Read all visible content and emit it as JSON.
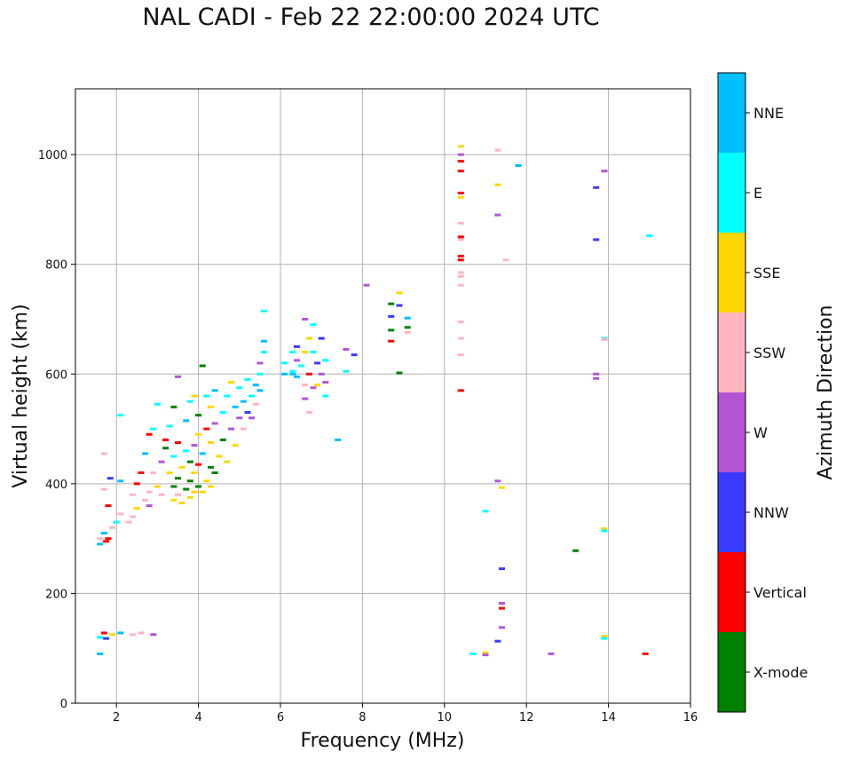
{
  "chart_data": {
    "type": "scatter",
    "title": "NAL CADI - Feb 22 22:00:00 2024 UTC",
    "xlabel": "Frequency (MHz)",
    "ylabel": "Virtual height (km)",
    "xlim": [
      1,
      16
    ],
    "ylim": [
      0,
      1120
    ],
    "xticks": [
      2,
      4,
      6,
      8,
      10,
      12,
      14,
      16
    ],
    "yticks": [
      0,
      200,
      400,
      600,
      800,
      1000
    ],
    "grid": true,
    "colorbar": {
      "label": "Azimuth Direction",
      "categories": [
        {
          "name": "X-mode",
          "color": "#008000"
        },
        {
          "name": "Vertical",
          "color": "#ff0000"
        },
        {
          "name": "NNW",
          "color": "#3a3aff"
        },
        {
          "name": "W",
          "color": "#b455d6"
        },
        {
          "name": "SSW",
          "color": "#ffb6c1"
        },
        {
          "name": "SSE",
          "color": "#ffd700"
        },
        {
          "name": "E",
          "color": "#00ffff"
        },
        {
          "name": "NNE",
          "color": "#00bfff"
        }
      ]
    },
    "points": [
      {
        "f": 1.6,
        "h": 90,
        "d": "NNE"
      },
      {
        "f": 1.6,
        "h": 120,
        "d": "E"
      },
      {
        "f": 1.7,
        "h": 128,
        "d": "Vertical"
      },
      {
        "f": 1.75,
        "h": 118,
        "d": "NNW"
      },
      {
        "f": 1.9,
        "h": 125,
        "d": "SSE"
      },
      {
        "f": 2.1,
        "h": 128,
        "d": "NNE"
      },
      {
        "f": 2.4,
        "h": 125,
        "d": "SSW"
      },
      {
        "f": 2.6,
        "h": 128,
        "d": "SSW"
      },
      {
        "f": 2.9,
        "h": 125,
        "d": "W"
      },
      {
        "f": 1.6,
        "h": 290,
        "d": "NNE"
      },
      {
        "f": 1.6,
        "h": 300,
        "d": "SSW"
      },
      {
        "f": 1.7,
        "h": 310,
        "d": "NNE"
      },
      {
        "f": 1.75,
        "h": 295,
        "d": "Vertical"
      },
      {
        "f": 1.8,
        "h": 300,
        "d": "Vertical"
      },
      {
        "f": 1.9,
        "h": 320,
        "d": "SSW"
      },
      {
        "f": 2.0,
        "h": 330,
        "d": "E"
      },
      {
        "f": 2.1,
        "h": 345,
        "d": "SSW"
      },
      {
        "f": 1.7,
        "h": 390,
        "d": "SSW"
      },
      {
        "f": 1.8,
        "h": 360,
        "d": "Vertical"
      },
      {
        "f": 1.85,
        "h": 410,
        "d": "NNW"
      },
      {
        "f": 1.7,
        "h": 455,
        "d": "SSW"
      },
      {
        "f": 2.1,
        "h": 405,
        "d": "NNE"
      },
      {
        "f": 2.1,
        "h": 525,
        "d": "E"
      },
      {
        "f": 2.3,
        "h": 330,
        "d": "SSW"
      },
      {
        "f": 2.4,
        "h": 340,
        "d": "SSW"
      },
      {
        "f": 2.5,
        "h": 355,
        "d": "SSE"
      },
      {
        "f": 2.5,
        "h": 400,
        "d": "Vertical"
      },
      {
        "f": 2.6,
        "h": 420,
        "d": "Vertical"
      },
      {
        "f": 2.4,
        "h": 380,
        "d": "SSW"
      },
      {
        "f": 2.7,
        "h": 370,
        "d": "SSW"
      },
      {
        "f": 2.8,
        "h": 360,
        "d": "W"
      },
      {
        "f": 2.8,
        "h": 385,
        "d": "SSW"
      },
      {
        "f": 2.9,
        "h": 420,
        "d": "SSW"
      },
      {
        "f": 2.7,
        "h": 455,
        "d": "NNE"
      },
      {
        "f": 2.8,
        "h": 490,
        "d": "Vertical"
      },
      {
        "f": 2.9,
        "h": 500,
        "d": "E"
      },
      {
        "f": 3.0,
        "h": 545,
        "d": "E"
      },
      {
        "f": 3.0,
        "h": 395,
        "d": "SSE"
      },
      {
        "f": 3.1,
        "h": 380,
        "d": "SSW"
      },
      {
        "f": 3.1,
        "h": 440,
        "d": "W"
      },
      {
        "f": 3.2,
        "h": 465,
        "d": "X-mode"
      },
      {
        "f": 3.2,
        "h": 480,
        "d": "Vertical"
      },
      {
        "f": 3.3,
        "h": 420,
        "d": "SSE"
      },
      {
        "f": 3.3,
        "h": 505,
        "d": "E"
      },
      {
        "f": 3.4,
        "h": 370,
        "d": "SSE"
      },
      {
        "f": 3.4,
        "h": 395,
        "d": "X-mode"
      },
      {
        "f": 3.4,
        "h": 450,
        "d": "E"
      },
      {
        "f": 3.4,
        "h": 540,
        "d": "X-mode"
      },
      {
        "f": 3.5,
        "h": 380,
        "d": "SSW"
      },
      {
        "f": 3.5,
        "h": 410,
        "d": "X-mode"
      },
      {
        "f": 3.5,
        "h": 475,
        "d": "Vertical"
      },
      {
        "f": 3.5,
        "h": 595,
        "d": "W"
      },
      {
        "f": 3.6,
        "h": 365,
        "d": "SSE"
      },
      {
        "f": 3.6,
        "h": 430,
        "d": "SSE"
      },
      {
        "f": 3.7,
        "h": 390,
        "d": "X-mode"
      },
      {
        "f": 3.7,
        "h": 460,
        "d": "E"
      },
      {
        "f": 3.7,
        "h": 515,
        "d": "NNE"
      },
      {
        "f": 3.8,
        "h": 375,
        "d": "SSE"
      },
      {
        "f": 3.8,
        "h": 405,
        "d": "X-mode"
      },
      {
        "f": 3.8,
        "h": 440,
        "d": "X-mode"
      },
      {
        "f": 3.8,
        "h": 550,
        "d": "E"
      },
      {
        "f": 3.9,
        "h": 385,
        "d": "SSE"
      },
      {
        "f": 3.9,
        "h": 420,
        "d": "SSE"
      },
      {
        "f": 3.9,
        "h": 470,
        "d": "W"
      },
      {
        "f": 3.9,
        "h": 560,
        "d": "SSE"
      },
      {
        "f": 4.0,
        "h": 395,
        "d": "X-mode"
      },
      {
        "f": 4.0,
        "h": 435,
        "d": "Vertical"
      },
      {
        "f": 4.0,
        "h": 490,
        "d": "SSE"
      },
      {
        "f": 4.0,
        "h": 525,
        "d": "X-mode"
      },
      {
        "f": 4.1,
        "h": 615,
        "d": "X-mode"
      },
      {
        "f": 4.1,
        "h": 385,
        "d": "SSE"
      },
      {
        "f": 4.1,
        "h": 455,
        "d": "NNE"
      },
      {
        "f": 4.2,
        "h": 405,
        "d": "SSE"
      },
      {
        "f": 4.2,
        "h": 500,
        "d": "Vertical"
      },
      {
        "f": 4.2,
        "h": 560,
        "d": "E"
      },
      {
        "f": 4.3,
        "h": 395,
        "d": "SSE"
      },
      {
        "f": 4.3,
        "h": 430,
        "d": "X-mode"
      },
      {
        "f": 4.3,
        "h": 475,
        "d": "SSE"
      },
      {
        "f": 4.3,
        "h": 540,
        "d": "SSE"
      },
      {
        "f": 4.4,
        "h": 420,
        "d": "X-mode"
      },
      {
        "f": 4.4,
        "h": 510,
        "d": "W"
      },
      {
        "f": 4.4,
        "h": 570,
        "d": "NNE"
      },
      {
        "f": 4.5,
        "h": 450,
        "d": "SSE"
      },
      {
        "f": 4.6,
        "h": 480,
        "d": "X-mode"
      },
      {
        "f": 4.6,
        "h": 530,
        "d": "E"
      },
      {
        "f": 4.7,
        "h": 440,
        "d": "SSE"
      },
      {
        "f": 4.7,
        "h": 560,
        "d": "E"
      },
      {
        "f": 4.8,
        "h": 500,
        "d": "W"
      },
      {
        "f": 4.8,
        "h": 585,
        "d": "SSE"
      },
      {
        "f": 4.9,
        "h": 470,
        "d": "SSE"
      },
      {
        "f": 4.9,
        "h": 540,
        "d": "NNE"
      },
      {
        "f": 5.0,
        "h": 520,
        "d": "W"
      },
      {
        "f": 5.0,
        "h": 575,
        "d": "E"
      },
      {
        "f": 5.1,
        "h": 500,
        "d": "SSW"
      },
      {
        "f": 5.1,
        "h": 550,
        "d": "NNE"
      },
      {
        "f": 5.2,
        "h": 530,
        "d": "NNW"
      },
      {
        "f": 5.2,
        "h": 590,
        "d": "E"
      },
      {
        "f": 5.3,
        "h": 560,
        "d": "E"
      },
      {
        "f": 5.3,
        "h": 520,
        "d": "W"
      },
      {
        "f": 5.4,
        "h": 580,
        "d": "NNE"
      },
      {
        "f": 5.4,
        "h": 545,
        "d": "SSW"
      },
      {
        "f": 5.5,
        "h": 600,
        "d": "E"
      },
      {
        "f": 5.5,
        "h": 620,
        "d": "W"
      },
      {
        "f": 5.5,
        "h": 570,
        "d": "NNE"
      },
      {
        "f": 5.6,
        "h": 640,
        "d": "E"
      },
      {
        "f": 5.6,
        "h": 660,
        "d": "NNE"
      },
      {
        "f": 5.6,
        "h": 715,
        "d": "E"
      },
      {
        "f": 6.1,
        "h": 620,
        "d": "E"
      },
      {
        "f": 6.1,
        "h": 600,
        "d": "NNE"
      },
      {
        "f": 6.3,
        "h": 605,
        "d": "E"
      },
      {
        "f": 6.3,
        "h": 640,
        "d": "E"
      },
      {
        "f": 6.3,
        "h": 600,
        "d": "NNE"
      },
      {
        "f": 6.4,
        "h": 650,
        "d": "NNW"
      },
      {
        "f": 6.4,
        "h": 595,
        "d": "NNE"
      },
      {
        "f": 6.4,
        "h": 625,
        "d": "W"
      },
      {
        "f": 6.5,
        "h": 615,
        "d": "E"
      },
      {
        "f": 6.6,
        "h": 700,
        "d": "W"
      },
      {
        "f": 6.6,
        "h": 640,
        "d": "SSE"
      },
      {
        "f": 6.6,
        "h": 580,
        "d": "SSW"
      },
      {
        "f": 6.6,
        "h": 555,
        "d": "W"
      },
      {
        "f": 6.7,
        "h": 665,
        "d": "SSE"
      },
      {
        "f": 6.7,
        "h": 600,
        "d": "Vertical"
      },
      {
        "f": 6.7,
        "h": 530,
        "d": "SSW"
      },
      {
        "f": 6.8,
        "h": 690,
        "d": "E"
      },
      {
        "f": 6.8,
        "h": 640,
        "d": "E"
      },
      {
        "f": 6.8,
        "h": 575,
        "d": "W"
      },
      {
        "f": 6.9,
        "h": 620,
        "d": "NNW"
      },
      {
        "f": 6.9,
        "h": 580,
        "d": "SSE"
      },
      {
        "f": 7.0,
        "h": 665,
        "d": "NNW"
      },
      {
        "f": 7.0,
        "h": 600,
        "d": "W"
      },
      {
        "f": 7.1,
        "h": 625,
        "d": "E"
      },
      {
        "f": 7.1,
        "h": 585,
        "d": "W"
      },
      {
        "f": 7.1,
        "h": 560,
        "d": "E"
      },
      {
        "f": 7.4,
        "h": 480,
        "d": "NNE"
      },
      {
        "f": 7.6,
        "h": 605,
        "d": "E"
      },
      {
        "f": 7.6,
        "h": 645,
        "d": "W"
      },
      {
        "f": 7.8,
        "h": 635,
        "d": "NNW"
      },
      {
        "f": 8.1,
        "h": 762,
        "d": "W"
      },
      {
        "f": 8.7,
        "h": 728,
        "d": "X-mode"
      },
      {
        "f": 8.7,
        "h": 705,
        "d": "NNW"
      },
      {
        "f": 8.7,
        "h": 680,
        "d": "X-mode"
      },
      {
        "f": 8.7,
        "h": 660,
        "d": "Vertical"
      },
      {
        "f": 8.9,
        "h": 748,
        "d": "SSE"
      },
      {
        "f": 8.9,
        "h": 725,
        "d": "NNW"
      },
      {
        "f": 8.9,
        "h": 602,
        "d": "X-mode"
      },
      {
        "f": 9.1,
        "h": 702,
        "d": "NNE"
      },
      {
        "f": 9.1,
        "h": 685,
        "d": "X-mode"
      },
      {
        "f": 9.1,
        "h": 676,
        "d": "SSW"
      },
      {
        "f": 10.4,
        "h": 1015,
        "d": "SSE"
      },
      {
        "f": 10.4,
        "h": 1000,
        "d": "W"
      },
      {
        "f": 10.4,
        "h": 988,
        "d": "Vertical"
      },
      {
        "f": 10.4,
        "h": 970,
        "d": "Vertical"
      },
      {
        "f": 10.4,
        "h": 930,
        "d": "Vertical"
      },
      {
        "f": 10.4,
        "h": 922,
        "d": "SSE"
      },
      {
        "f": 10.4,
        "h": 875,
        "d": "SSW"
      },
      {
        "f": 10.4,
        "h": 850,
        "d": "Vertical"
      },
      {
        "f": 10.4,
        "h": 845,
        "d": "SSW"
      },
      {
        "f": 10.4,
        "h": 815,
        "d": "Vertical"
      },
      {
        "f": 10.4,
        "h": 808,
        "d": "Vertical"
      },
      {
        "f": 10.4,
        "h": 785,
        "d": "SSW"
      },
      {
        "f": 10.4,
        "h": 778,
        "d": "SSW"
      },
      {
        "f": 10.4,
        "h": 762,
        "d": "SSW"
      },
      {
        "f": 10.4,
        "h": 695,
        "d": "SSW"
      },
      {
        "f": 10.4,
        "h": 665,
        "d": "SSW"
      },
      {
        "f": 10.4,
        "h": 635,
        "d": "SSW"
      },
      {
        "f": 10.4,
        "h": 570,
        "d": "Vertical"
      },
      {
        "f": 11.3,
        "h": 1008,
        "d": "SSW"
      },
      {
        "f": 11.3,
        "h": 945,
        "d": "SSE"
      },
      {
        "f": 11.3,
        "h": 890,
        "d": "W"
      },
      {
        "f": 11.5,
        "h": 808,
        "d": "SSW"
      },
      {
        "f": 11.8,
        "h": 980,
        "d": "NNE"
      },
      {
        "f": 11.3,
        "h": 405,
        "d": "W"
      },
      {
        "f": 11.4,
        "h": 393,
        "d": "SSE"
      },
      {
        "f": 11.0,
        "h": 350,
        "d": "E"
      },
      {
        "f": 11.4,
        "h": 245,
        "d": "NNW"
      },
      {
        "f": 11.4,
        "h": 182,
        "d": "W"
      },
      {
        "f": 11.4,
        "h": 173,
        "d": "Vertical"
      },
      {
        "f": 11.4,
        "h": 138,
        "d": "W"
      },
      {
        "f": 11.3,
        "h": 113,
        "d": "NNW"
      },
      {
        "f": 10.7,
        "h": 90,
        "d": "E"
      },
      {
        "f": 11.0,
        "h": 92,
        "d": "SSE"
      },
      {
        "f": 11.0,
        "h": 88,
        "d": "W"
      },
      {
        "f": 12.6,
        "h": 90,
        "d": "W"
      },
      {
        "f": 13.2,
        "h": 278,
        "d": "X-mode"
      },
      {
        "f": 13.7,
        "h": 940,
        "d": "NNW"
      },
      {
        "f": 13.7,
        "h": 845,
        "d": "NNW"
      },
      {
        "f": 13.7,
        "h": 600,
        "d": "W"
      },
      {
        "f": 13.7,
        "h": 592,
        "d": "W"
      },
      {
        "f": 13.9,
        "h": 970,
        "d": "W"
      },
      {
        "f": 13.9,
        "h": 665,
        "d": "E"
      },
      {
        "f": 13.9,
        "h": 663,
        "d": "SSW"
      },
      {
        "f": 13.9,
        "h": 318,
        "d": "SSE"
      },
      {
        "f": 13.9,
        "h": 314,
        "d": "E"
      },
      {
        "f": 13.9,
        "h": 122,
        "d": "SSE"
      },
      {
        "f": 13.9,
        "h": 118,
        "d": "E"
      },
      {
        "f": 14.9,
        "h": 90,
        "d": "Vertical"
      },
      {
        "f": 15.0,
        "h": 852,
        "d": "E"
      }
    ]
  }
}
